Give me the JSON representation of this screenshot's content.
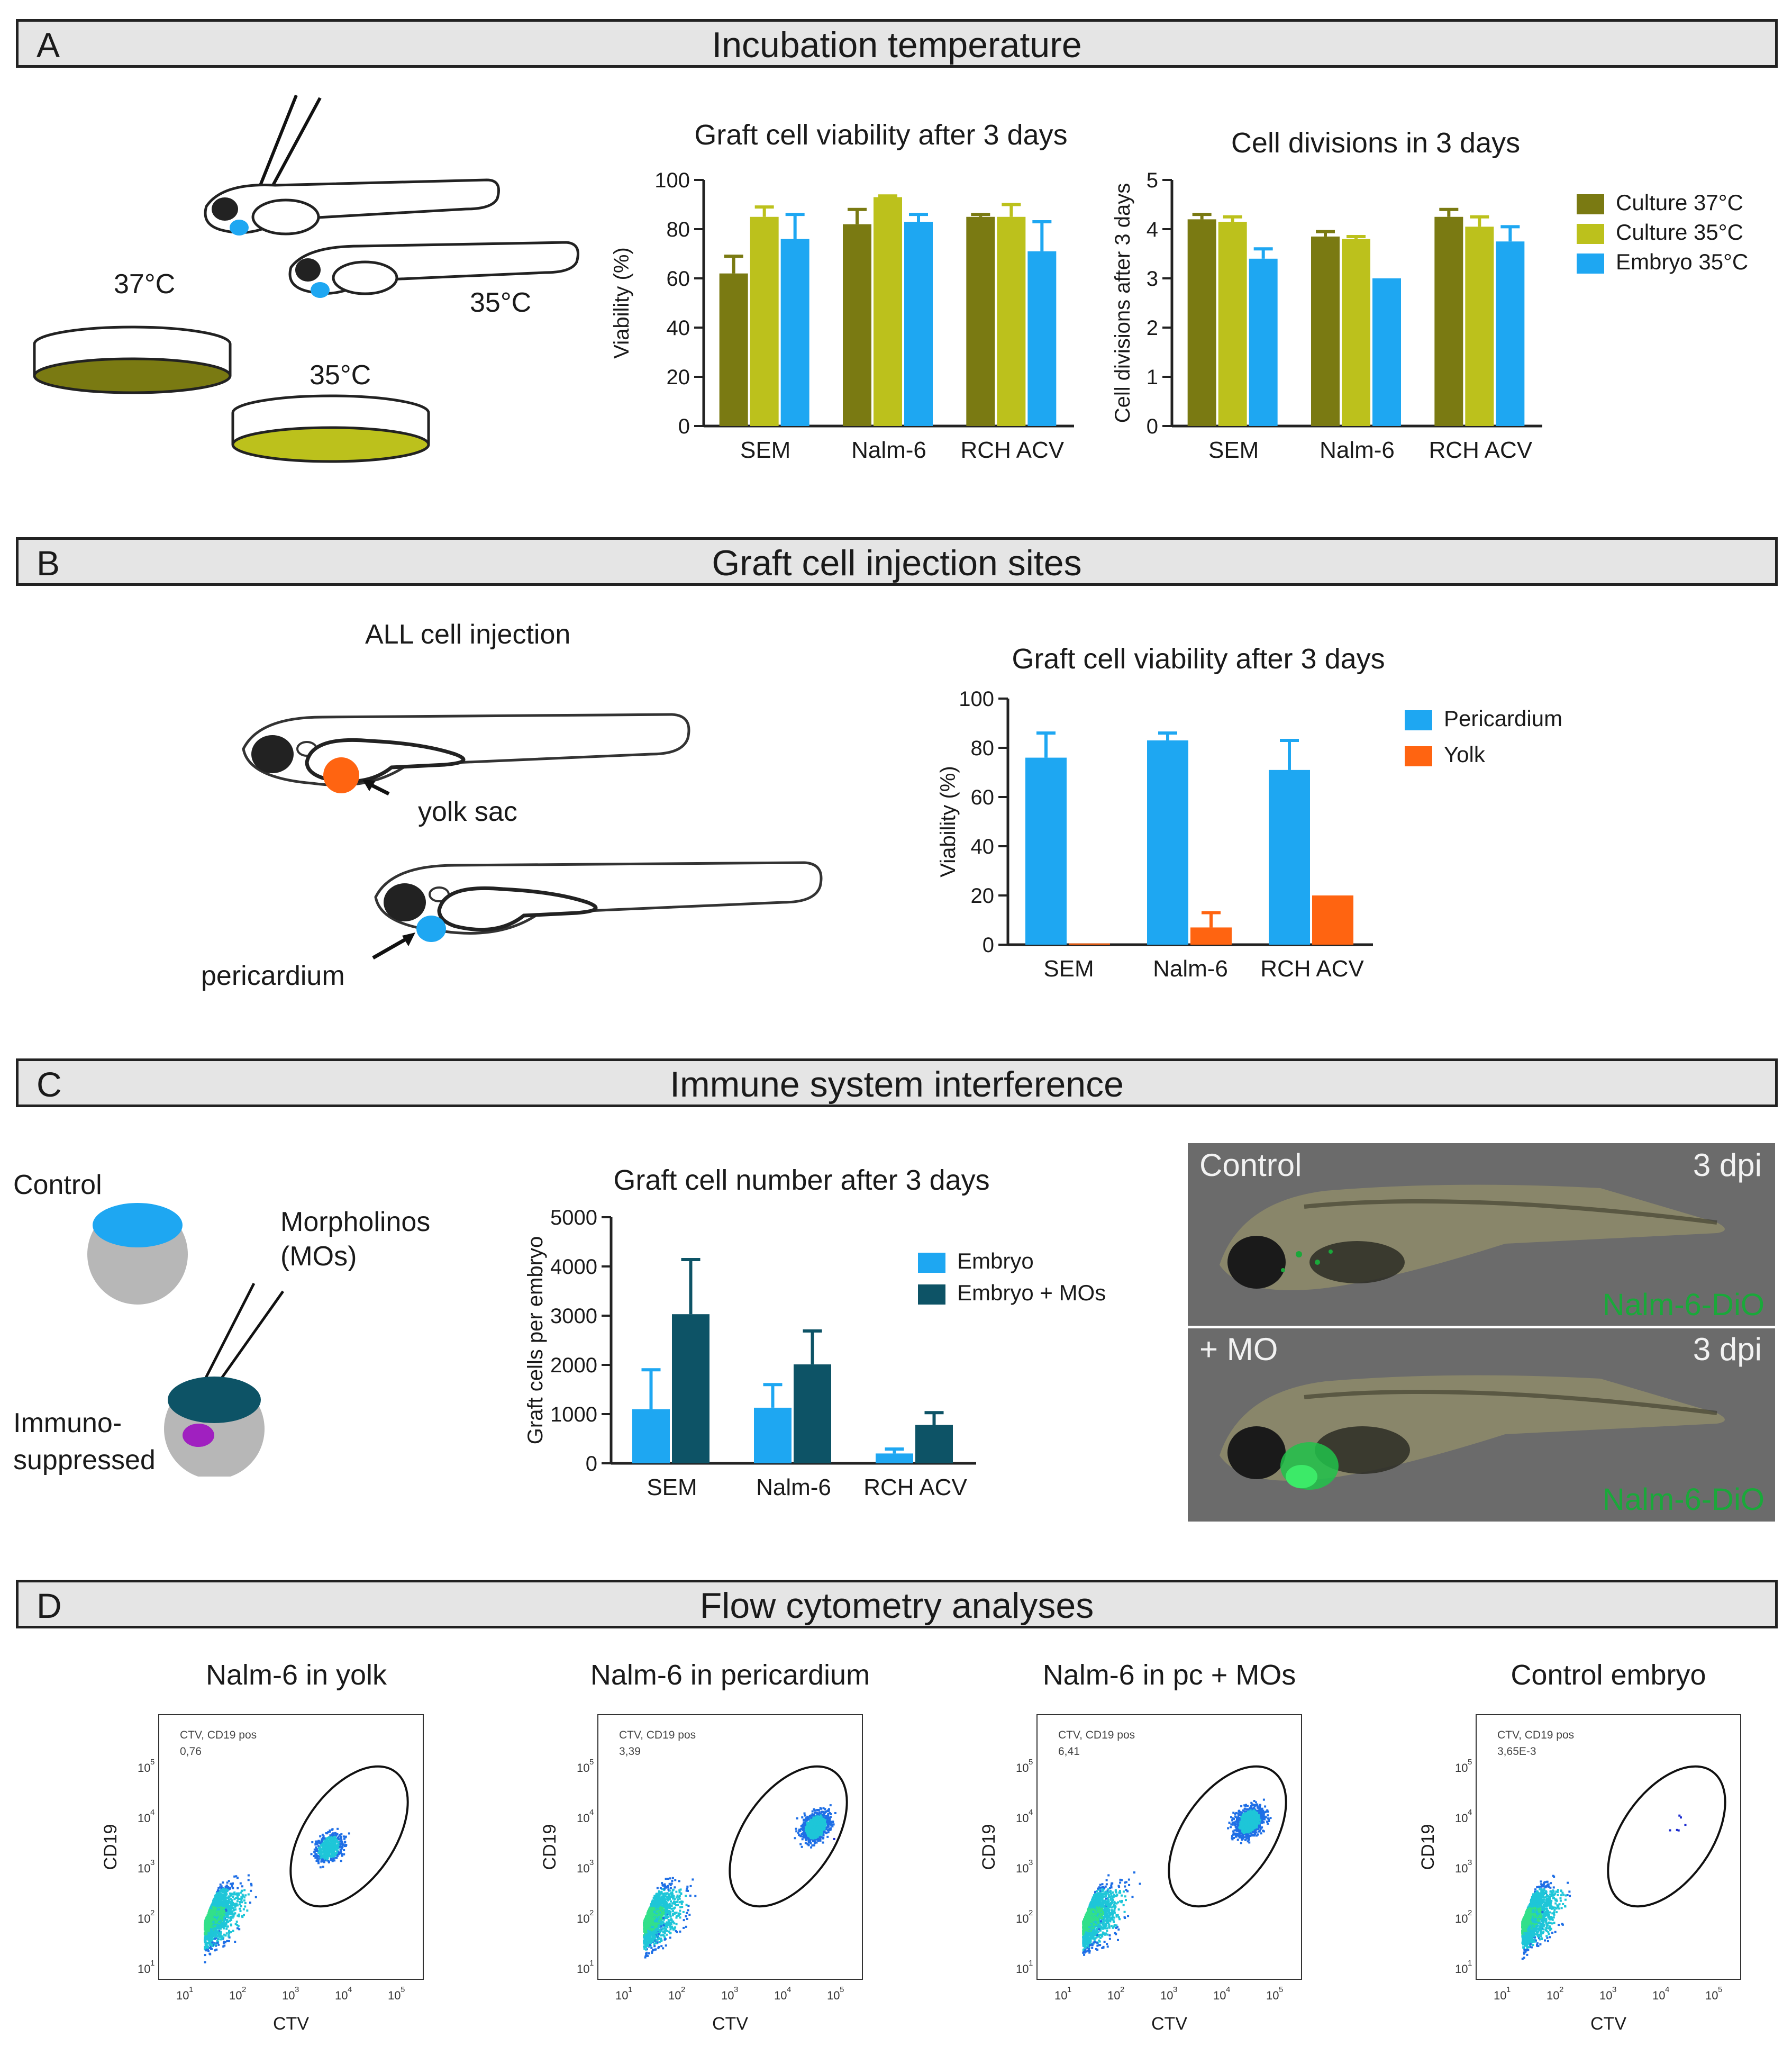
{
  "panels": {
    "A": {
      "letter": "A",
      "title": "Incubation temperature"
    },
    "B": {
      "letter": "B",
      "title": "Graft cell injection sites"
    },
    "C": {
      "letter": "C",
      "title": "Immune system interference"
    },
    "D": {
      "letter": "D",
      "title": "Flow cytometry analyses"
    }
  },
  "panelA_illustration": {
    "temp_37": "37°C",
    "temp_35_dish": "35°C",
    "temp_35_fish": "35°C"
  },
  "panelB_illustration": {
    "title": "ALL cell injection",
    "yolk_label": "yolk sac",
    "peri_label": "pericardium"
  },
  "panelC_illustration": {
    "control": "Control",
    "morpholinos": "Morpholinos",
    "mos": "(MOs)",
    "immuno1": "Immuno-",
    "immuno2": "suppressed"
  },
  "photos": {
    "top": {
      "left": "Control",
      "right": "3 dpi",
      "bottom": "Nalm-6-DiO"
    },
    "bottom": {
      "left": "+ MO",
      "right": "3 dpi",
      "bottom": "Nalm-6-DiO"
    }
  },
  "colors": {
    "culture37": "#7a7a12",
    "culture35": "#bcc11c",
    "embryo35": "#1ea7f2",
    "pericardium": "#1ea7f2",
    "yolk": "#ff6411",
    "embryo": "#1ea7f2",
    "embryoMO": "#0d5366",
    "purple": "#a020c0"
  },
  "chart_data": [
    {
      "id": "A1",
      "type": "bar",
      "title": "Graft cell viability after 3 days",
      "xlabel": "",
      "ylabel": "Viability (%)",
      "ylim": [
        0,
        100
      ],
      "yticks": [
        0,
        20,
        40,
        60,
        80,
        100
      ],
      "categories": [
        "SEM",
        "Nalm-6",
        "RCH ACV"
      ],
      "series": [
        {
          "name": "Culture 37°C",
          "color": "#7a7a12",
          "values": [
            62,
            82,
            85
          ],
          "errors": [
            7,
            6,
            1
          ]
        },
        {
          "name": "Culture 35°C",
          "color": "#bcc11c",
          "values": [
            85,
            93,
            85
          ],
          "errors": [
            4,
            0.5,
            5
          ]
        },
        {
          "name": "Embryo 35°C",
          "color": "#1ea7f2",
          "values": [
            76,
            83,
            71
          ],
          "errors": [
            10,
            3,
            12
          ]
        }
      ]
    },
    {
      "id": "A2",
      "type": "bar",
      "title": "Cell divisions in 3 days",
      "xlabel": "",
      "ylabel": "Cell divisions after 3 days",
      "ylim": [
        0,
        5
      ],
      "yticks": [
        0,
        1,
        2,
        3,
        4,
        5
      ],
      "categories": [
        "SEM",
        "Nalm-6",
        "RCH ACV"
      ],
      "legend": "right",
      "series": [
        {
          "name": "Culture 37°C",
          "color": "#7a7a12",
          "values": [
            4.2,
            3.85,
            4.25
          ],
          "errors": [
            0.1,
            0.1,
            0.15
          ]
        },
        {
          "name": "Culture 35°C",
          "color": "#bcc11c",
          "values": [
            4.15,
            3.8,
            4.05
          ],
          "errors": [
            0.1,
            0.05,
            0.2
          ]
        },
        {
          "name": "Embryo 35°C",
          "color": "#1ea7f2",
          "values": [
            3.4,
            3.0,
            3.75
          ],
          "errors": [
            0.2,
            0,
            0.3
          ]
        }
      ]
    },
    {
      "id": "B1",
      "type": "bar",
      "title": "Graft cell viability after 3 days",
      "xlabel": "",
      "ylabel": "Viability (%)",
      "ylim": [
        0,
        100
      ],
      "yticks": [
        0,
        20,
        40,
        60,
        80,
        100
      ],
      "categories": [
        "SEM",
        "Nalm-6",
        "RCH ACV"
      ],
      "legend": "right",
      "series": [
        {
          "name": "Pericardium",
          "color": "#1ea7f2",
          "values": [
            76,
            83,
            71
          ],
          "errors": [
            10,
            3,
            12
          ]
        },
        {
          "name": "Yolk",
          "color": "#ff6411",
          "values": [
            0.5,
            7,
            20
          ],
          "errors": [
            0,
            6,
            0
          ]
        }
      ]
    },
    {
      "id": "C1",
      "type": "bar",
      "title": "Graft cell number after 3 days",
      "xlabel": "",
      "ylabel": "Graft cells per embryo",
      "ylim": [
        0,
        5000
      ],
      "yticks": [
        0,
        1000,
        2000,
        3000,
        4000,
        5000
      ],
      "categories": [
        "SEM",
        "Nalm-6",
        "RCH ACV"
      ],
      "legend": "right",
      "series": [
        {
          "name": "Embryo",
          "color": "#1ea7f2",
          "values": [
            1100,
            1130,
            200
          ],
          "errors": [
            800,
            470,
            90
          ]
        },
        {
          "name": "Embryo + MOs",
          "color": "#0d5366",
          "values": [
            3030,
            2010,
            780
          ],
          "errors": [
            1110,
            680,
            250
          ]
        }
      ]
    },
    {
      "id": "D1",
      "type": "scatter",
      "title": "Nalm-6 in yolk",
      "xlabel": "CTV",
      "ylabel": "CD19",
      "gate_label": "CTV, CD19 pos",
      "gate_value": "0,76"
    },
    {
      "id": "D2",
      "type": "scatter",
      "title": "Nalm-6 in pericardium",
      "xlabel": "CTV",
      "ylabel": "CD19",
      "gate_label": "CTV, CD19 pos",
      "gate_value": "3,39"
    },
    {
      "id": "D3",
      "type": "scatter",
      "title": "Nalm-6 in pc + MOs",
      "xlabel": "CTV",
      "ylabel": "CD19",
      "gate_label": "CTV, CD19 pos",
      "gate_value": "6,41"
    },
    {
      "id": "D4",
      "type": "scatter",
      "title": "Control embryo",
      "xlabel": "CTV",
      "ylabel": "CD19",
      "gate_label": "CTV, CD19 pos",
      "gate_value": "3,65E-3"
    }
  ]
}
